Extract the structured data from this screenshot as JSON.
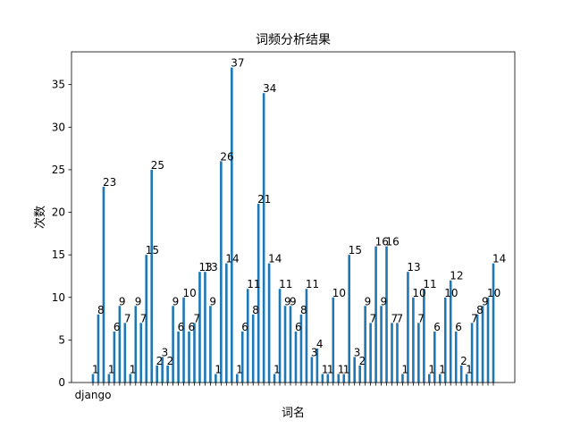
{
  "chart_data": {
    "type": "bar",
    "title": "词频分析结果",
    "xlabel": "词名",
    "ylabel": "次数",
    "ylim": [
      0,
      38.85
    ],
    "yticks": [
      0,
      5,
      10,
      15,
      20,
      25,
      30,
      35
    ],
    "first_category_label": "django",
    "bar_color": "#1f77b4",
    "grid": false,
    "values": [
      1,
      8,
      23,
      1,
      6,
      9,
      7,
      1,
      9,
      7,
      15,
      25,
      2,
      3,
      2,
      9,
      6,
      10,
      6,
      7,
      13,
      13,
      9,
      1,
      26,
      14,
      37,
      1,
      6,
      11,
      8,
      21,
      34,
      14,
      1,
      11,
      9,
      9,
      6,
      8,
      11,
      3,
      4,
      1,
      1,
      10,
      1,
      1,
      15,
      3,
      2,
      9,
      7,
      16,
      9,
      16,
      7,
      7,
      1,
      13,
      10,
      7,
      11,
      1,
      6,
      1,
      10,
      12,
      6,
      2,
      1,
      7,
      8,
      9,
      10,
      14
    ]
  }
}
